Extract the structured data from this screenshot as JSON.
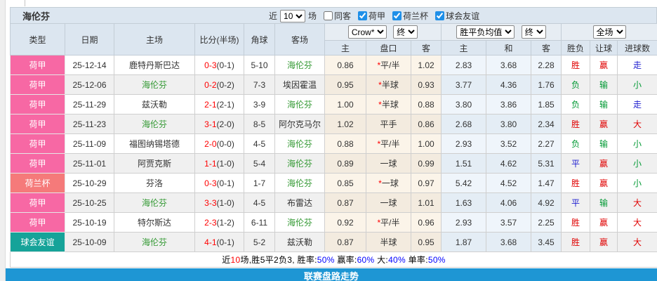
{
  "header": {
    "team": "海伦芬",
    "filter": {
      "near_label": "近",
      "count_value": "10",
      "unit_label": "场",
      "same_away_label": "同客",
      "leagues": [
        {
          "label": "荷甲",
          "checked": true
        },
        {
          "label": "荷兰杯",
          "checked": true
        },
        {
          "label": "球会友谊",
          "checked": true
        }
      ]
    }
  },
  "table": {
    "columns": {
      "type": "类型",
      "date": "日期",
      "home": "主场",
      "score": "比分(半场)",
      "corner": "角球",
      "away": "客场",
      "ah_group": {
        "selects": [
          "Crow*",
          "终"
        ],
        "sub": [
          "主",
          "盘口",
          "客"
        ]
      },
      "eu_group": {
        "selects": [
          "胜平负均值",
          "终"
        ],
        "sub": [
          "主",
          "和",
          "客"
        ]
      },
      "result_group": {
        "selects": [
          "全场"
        ],
        "sub": [
          "胜负",
          "让球",
          "进球数"
        ]
      }
    },
    "type_colors": {
      "荷甲": "#f768a4",
      "荷兰杯": "#f57a7a",
      "球会友谊": "#16a399"
    },
    "outcome_colors": {
      "胜": "#e00000",
      "平": "#2020d0",
      "负": "#009933",
      "赢": "#e00000",
      "输": "#009933",
      "走": "#2020d0",
      "大": "#e00000",
      "小": "#009933"
    },
    "team_color": "#339933",
    "rows": [
      {
        "type": "荷甲",
        "date": "25-12-14",
        "home": "鹿特丹斯巴达",
        "score": "0-3",
        "half": "(0-1)",
        "corner": "5-10",
        "away": "海伦芬",
        "ah_home": "0.86",
        "handicap": "*平/半",
        "ah_away": "1.02",
        "odds_home": "2.83",
        "odds_draw": "3.68",
        "odds_away": "2.28",
        "result": "胜",
        "ah_result": "赢",
        "goals": "走"
      },
      {
        "type": "荷甲",
        "date": "25-12-06",
        "home": "海伦芬",
        "score": "0-2",
        "half": "(0-2)",
        "corner": "7-3",
        "away": "埃因霍温",
        "ah_home": "0.95",
        "handicap": "*半球",
        "ah_away": "0.93",
        "odds_home": "3.77",
        "odds_draw": "4.36",
        "odds_away": "1.76",
        "result": "负",
        "ah_result": "输",
        "goals": "小"
      },
      {
        "type": "荷甲",
        "date": "25-11-29",
        "home": "兹沃勒",
        "score": "2-1",
        "half": "(2-1)",
        "corner": "3-9",
        "away": "海伦芬",
        "ah_home": "1.00",
        "handicap": "*半球",
        "ah_away": "0.88",
        "odds_home": "3.80",
        "odds_draw": "3.86",
        "odds_away": "1.85",
        "result": "负",
        "ah_result": "输",
        "goals": "走"
      },
      {
        "type": "荷甲",
        "date": "25-11-23",
        "home": "海伦芬",
        "score": "3-1",
        "half": "(2-0)",
        "corner": "8-5",
        "away": "阿尔克马尔",
        "ah_home": "1.02",
        "handicap": "平手",
        "ah_away": "0.86",
        "odds_home": "2.68",
        "odds_draw": "3.80",
        "odds_away": "2.34",
        "result": "胜",
        "ah_result": "赢",
        "goals": "大"
      },
      {
        "type": "荷甲",
        "date": "25-11-09",
        "home": "福图纳锡塔德",
        "score": "2-0",
        "half": "(0-0)",
        "corner": "4-5",
        "away": "海伦芬",
        "ah_home": "0.88",
        "handicap": "*平/半",
        "ah_away": "1.00",
        "odds_home": "2.93",
        "odds_draw": "3.52",
        "odds_away": "2.27",
        "result": "负",
        "ah_result": "输",
        "goals": "小"
      },
      {
        "type": "荷甲",
        "date": "25-11-01",
        "home": "阿贾克斯",
        "score": "1-1",
        "half": "(1-0)",
        "corner": "5-4",
        "away": "海伦芬",
        "ah_home": "0.89",
        "handicap": "一球",
        "ah_away": "0.99",
        "odds_home": "1.51",
        "odds_draw": "4.62",
        "odds_away": "5.31",
        "result": "平",
        "ah_result": "赢",
        "goals": "小"
      },
      {
        "type": "荷兰杯",
        "date": "25-10-29",
        "home": "芬洛",
        "score": "0-3",
        "half": "(0-1)",
        "corner": "1-7",
        "away": "海伦芬",
        "ah_home": "0.85",
        "handicap": "*一球",
        "ah_away": "0.97",
        "odds_home": "5.42",
        "odds_draw": "4.52",
        "odds_away": "1.47",
        "result": "胜",
        "ah_result": "赢",
        "goals": "小"
      },
      {
        "type": "荷甲",
        "date": "25-10-25",
        "home": "海伦芬",
        "score": "3-3",
        "half": "(1-0)",
        "corner": "4-5",
        "away": "布雷达",
        "ah_home": "0.87",
        "handicap": "一球",
        "ah_away": "1.01",
        "odds_home": "1.63",
        "odds_draw": "4.06",
        "odds_away": "4.92",
        "result": "平",
        "ah_result": "输",
        "goals": "大"
      },
      {
        "type": "荷甲",
        "date": "25-10-19",
        "home": "特尔斯达",
        "score": "2-3",
        "half": "(1-2)",
        "corner": "6-11",
        "away": "海伦芬",
        "ah_home": "0.92",
        "handicap": "*平/半",
        "ah_away": "0.96",
        "odds_home": "2.93",
        "odds_draw": "3.57",
        "odds_away": "2.25",
        "result": "胜",
        "ah_result": "赢",
        "goals": "大"
      },
      {
        "type": "球会友谊",
        "date": "25-10-09",
        "home": "海伦芬",
        "score": "4-1",
        "half": "(0-1)",
        "corner": "5-2",
        "away": "兹沃勒",
        "ah_home": "0.87",
        "handicap": "半球",
        "ah_away": "0.95",
        "odds_home": "1.87",
        "odds_draw": "3.68",
        "odds_away": "3.45",
        "result": "胜",
        "ah_result": "赢",
        "goals": "大"
      }
    ]
  },
  "summary": {
    "segments": [
      {
        "text": "近",
        "color": "#000000"
      },
      {
        "text": "10",
        "color": "#ff0000"
      },
      {
        "text": "场,胜5平2负3, 胜率:",
        "color": "#000000"
      },
      {
        "text": "50%",
        "color": "#0000ff"
      },
      {
        "text": " 赢率:",
        "color": "#000000"
      },
      {
        "text": "60%",
        "color": "#0000ff"
      },
      {
        "text": " 大:",
        "color": "#000000"
      },
      {
        "text": "40%",
        "color": "#0000ff"
      },
      {
        "text": " 单率:",
        "color": "#000000"
      },
      {
        "text": "50%",
        "color": "#0000ff"
      }
    ]
  },
  "footer": {
    "title": "联赛盘路走势"
  }
}
